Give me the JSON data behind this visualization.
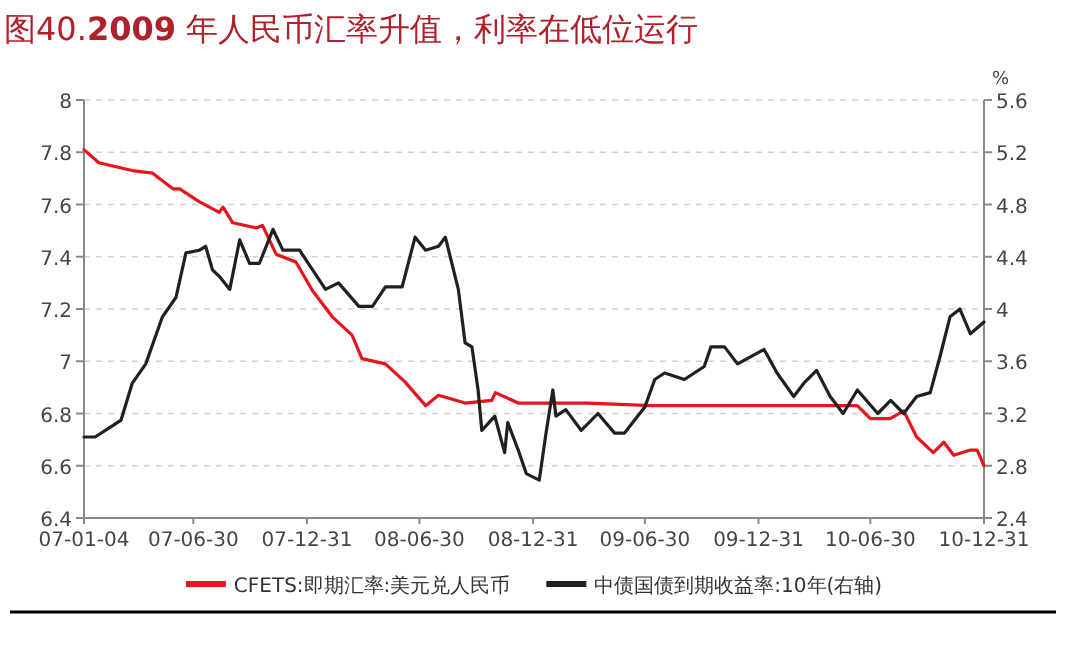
{
  "chart_data": {
    "type": "line",
    "title": "图40.**2009** 年人民币汇率升值，利率在低位运行",
    "y2label": "%",
    "xlim": [
      "2007-01-04",
      "2010-12-31"
    ],
    "xticks": [
      {
        "value": "2007-01-04",
        "label": "07-01-04"
      },
      {
        "value": "2007-06-30",
        "label": "07-06-30"
      },
      {
        "value": "2007-12-31",
        "label": "07-12-31"
      },
      {
        "value": "2008-06-30",
        "label": "08-06-30"
      },
      {
        "value": "2008-12-31",
        "label": "08-12-31"
      },
      {
        "value": "2009-06-30",
        "label": "09-06-30"
      },
      {
        "value": "2009-12-31",
        "label": "09-12-31"
      },
      {
        "value": "2010-06-30",
        "label": "10-06-30"
      },
      {
        "value": "2010-12-31",
        "label": "10-12-31"
      }
    ],
    "ylim": [
      6.4,
      8
    ],
    "yticks": [
      6.4,
      6.6,
      6.8,
      7,
      7.2,
      7.4,
      7.6,
      7.8,
      8
    ],
    "y2lim": [
      2.4,
      5.6
    ],
    "y2ticks": [
      2.4,
      2.8,
      3.2,
      3.6,
      4,
      4.4,
      4.8,
      5.2,
      5.6
    ],
    "grid": "y",
    "legend": "bottom",
    "series": [
      {
        "name": "CFETS:即期汇率:美元兑人民币",
        "color": "#e8141c",
        "x": [
          "2007-01-04",
          "2007-01-28",
          "2007-03-23",
          "2007-04-25",
          "2007-05-28",
          "2007-06-08",
          "2007-07-10",
          "2007-08-11",
          "2007-08-17",
          "2007-09-02",
          "2007-10-10",
          "2007-10-20",
          "2007-11-11",
          "2007-12-13",
          "2008-01-09",
          "2008-02-10",
          "2008-03-13",
          "2008-03-29",
          "2008-05-06",
          "2008-06-07",
          "2008-07-10",
          "2008-07-31",
          "2008-09-12",
          "2008-10-25",
          "2008-10-31",
          "2008-12-07",
          "2009-03-29",
          "2009-07-11",
          "2010-02-11",
          "2010-06-09",
          "2010-06-30",
          "2010-08-01",
          "2010-08-23",
          "2010-09-13",
          "2010-10-10",
          "2010-10-27",
          "2010-11-12",
          "2010-12-09",
          "2010-12-20",
          "2010-12-31"
        ],
        "values": [
          7.81,
          7.76,
          7.73,
          7.72,
          7.66,
          7.66,
          7.61,
          7.57,
          7.59,
          7.53,
          7.51,
          7.52,
          7.41,
          7.38,
          7.27,
          7.17,
          7.1,
          7.01,
          6.99,
          6.92,
          6.83,
          6.87,
          6.84,
          6.85,
          6.88,
          6.84,
          6.84,
          6.83,
          6.83,
          6.83,
          6.78,
          6.78,
          6.81,
          6.71,
          6.65,
          6.69,
          6.64,
          6.66,
          6.66,
          6.6
        ]
      },
      {
        "name": "中债国债到期收益率:10年(右轴)",
        "color": "#231f20",
        "axis": "y2",
        "x": [
          "2007-01-04",
          "2007-01-22",
          "2007-02-17",
          "2007-03-05",
          "2007-03-23",
          "2007-04-14",
          "2007-05-11",
          "2007-06-02",
          "2007-06-18",
          "2007-07-10",
          "2007-07-20",
          "2007-07-31",
          "2007-08-11",
          "2007-08-28",
          "2007-09-13",
          "2007-09-29",
          "2007-10-15",
          "2007-11-06",
          "2007-11-22",
          "2007-12-19",
          "2008-01-30",
          "2008-02-20",
          "2008-03-24",
          "2008-04-15",
          "2008-05-06",
          "2008-06-02",
          "2008-06-23",
          "2008-07-10",
          "2008-07-31",
          "2008-08-11",
          "2008-09-01",
          "2008-09-12",
          "2008-09-23",
          "2008-10-03",
          "2008-10-09",
          "2008-10-30",
          "2008-11-15",
          "2008-11-20",
          "2008-12-07",
          "2008-12-20",
          "2009-01-10",
          "2009-01-21",
          "2009-02-01",
          "2009-02-06",
          "2009-02-22",
          "2009-03-19",
          "2009-04-15",
          "2009-05-12",
          "2009-05-28",
          "2009-06-30",
          "2009-07-16",
          "2009-08-01",
          "2009-09-02",
          "2009-10-04",
          "2009-10-15",
          "2009-11-06",
          "2009-11-27",
          "2010-01-09",
          "2010-01-30",
          "2010-02-26",
          "2010-03-14",
          "2010-04-04",
          "2010-04-26",
          "2010-05-17",
          "2010-06-09",
          "2010-07-12",
          "2010-08-02",
          "2010-08-23",
          "2010-09-13",
          "2010-10-05",
          "2010-10-21",
          "2010-11-06",
          "2010-11-22",
          "2010-12-09",
          "2010-12-31"
        ],
        "values": [
          3.02,
          3.02,
          3.1,
          3.15,
          3.43,
          3.58,
          3.94,
          4.09,
          4.43,
          4.45,
          4.48,
          4.3,
          4.25,
          4.15,
          4.53,
          4.35,
          4.35,
          4.61,
          4.45,
          4.45,
          4.15,
          4.2,
          4.02,
          4.02,
          4.17,
          4.17,
          4.55,
          4.45,
          4.48,
          4.55,
          4.15,
          3.74,
          3.71,
          3.38,
          3.07,
          3.18,
          2.9,
          3.13,
          2.92,
          2.74,
          2.69,
          3.05,
          3.38,
          3.18,
          3.23,
          3.07,
          3.2,
          3.05,
          3.05,
          3.25,
          3.46,
          3.51,
          3.46,
          3.56,
          3.71,
          3.71,
          3.58,
          3.69,
          3.51,
          3.33,
          3.43,
          3.53,
          3.33,
          3.2,
          3.38,
          3.2,
          3.3,
          3.2,
          3.33,
          3.36,
          3.64,
          3.94,
          4.0,
          3.81,
          3.9
        ]
      }
    ]
  }
}
